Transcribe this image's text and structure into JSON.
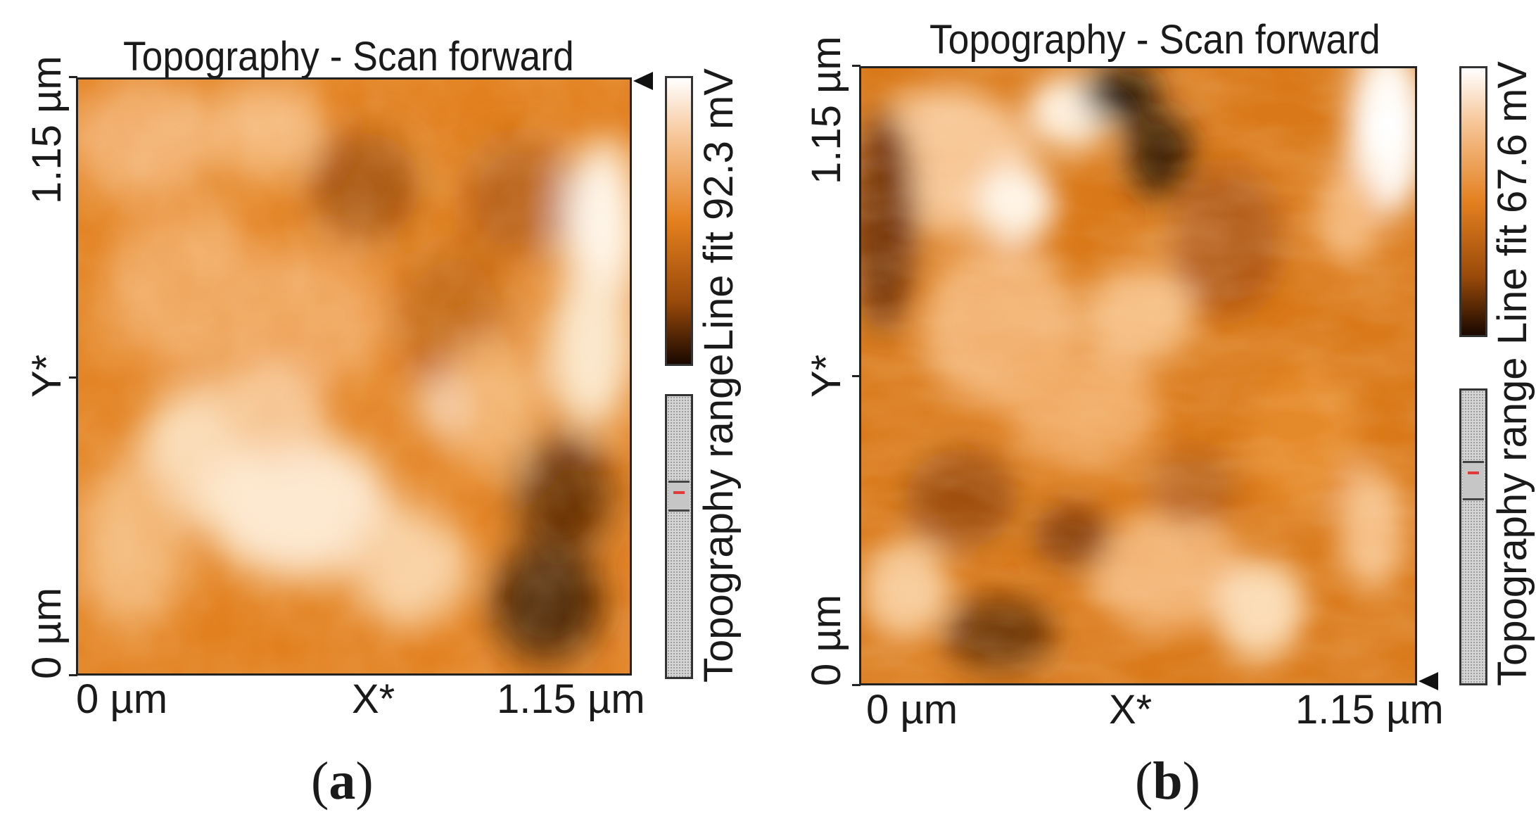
{
  "panels": [
    {
      "id": "a",
      "title": "Topography - Scan forward",
      "y_top_label": "1.15 µm",
      "y_mid_label": "Y*",
      "y_bottom_label": "0 µm",
      "x_left_label": "0 µm",
      "x_mid_label": "X*",
      "x_right_label": "1.15 µm",
      "colorbar_label": "Line fit 92.3 mV",
      "range_label": "Topography range",
      "caption_letter": "a"
    },
    {
      "id": "b",
      "title": "Topography - Scan forward",
      "y_top_label": "1.15 µm",
      "y_mid_label": "Y*",
      "y_bottom_label": "0 µm",
      "x_left_label": "0 µm",
      "x_mid_label": "X*",
      "x_right_label": "1.15 µm",
      "colorbar_label": "Line fit 67.6 mV",
      "range_label": "Topography range",
      "caption_letter": "b"
    }
  ],
  "colors": {
    "dark": "#2a1200",
    "mid": "#e07f1d",
    "light": "#fffdf8",
    "frame": "#222222",
    "range_marker": "#e23a3a"
  }
}
